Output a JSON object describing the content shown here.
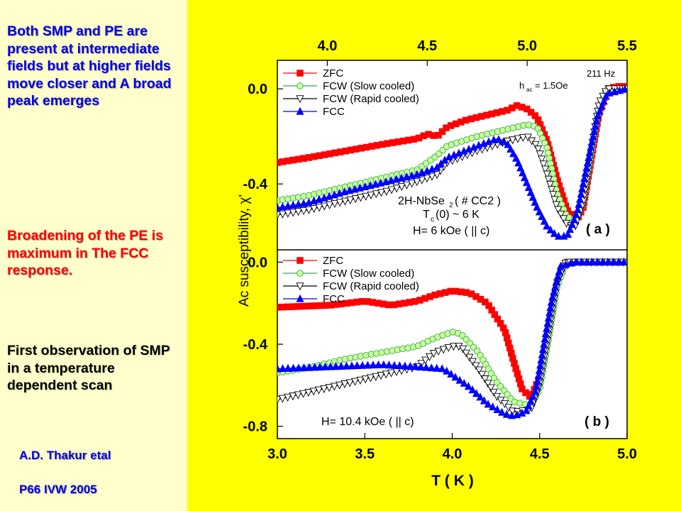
{
  "left_text": {
    "paragraph1": "Both SMP and PE are present at intermediate fields but at higher fields move closer and A broad peak emerges",
    "paragraph2": "Broadening of the PE is maximum in The FCC response.",
    "paragraph3": "First observation of SMP in a temperature dependent scan",
    "author": "A.D. Thakur etal",
    "reference": "P66 IVW 2005"
  },
  "colors": {
    "left_background": "#ffffcc",
    "right_background": "#ffff00",
    "zfc": "#ff0000",
    "fcw_slow": "#ccff99",
    "fcw_rapid": "#ffffff",
    "fcc": "#0000ff",
    "accent_blue": "#0000ee",
    "accent_red": "#ff0000"
  },
  "chart_data": {
    "type": "scatter",
    "ylabel": "Ac susceptibility, χ'",
    "xlabel": "T ( K )",
    "panels": [
      {
        "label": "( a )",
        "xlim": [
          3.75,
          5.5
        ],
        "ylim": [
          -0.68,
          0.12
        ],
        "x_ticks": [
          "4.0",
          "4.5",
          "5.0",
          "5.5"
        ],
        "y_ticks": [
          "0.0",
          "-0.4"
        ],
        "legend": [
          "ZFC",
          "FCW (Slow cooled)",
          "FCW (Rapid cooled)",
          "FCC"
        ],
        "annotations": [
          "211 Hz",
          "h",
          "ac",
          "= 1.5Oe",
          "2H-NbSe",
          "2",
          " ( # CC2 )",
          "T",
          "c",
          "(0) ~ 6 K",
          "H= 6 kOe ( || c)"
        ],
        "series": [
          {
            "name": "ZFC",
            "marker": "square",
            "points": [
              [
                3.75,
                -0.31
              ],
              [
                3.9,
                -0.29
              ],
              [
                4.1,
                -0.26
              ],
              [
                4.3,
                -0.23
              ],
              [
                4.45,
                -0.21
              ],
              [
                4.5,
                -0.19
              ],
              [
                4.55,
                -0.2
              ],
              [
                4.6,
                -0.16
              ],
              [
                4.7,
                -0.13
              ],
              [
                4.8,
                -0.11
              ],
              [
                4.9,
                -0.09
              ],
              [
                4.95,
                -0.07
              ],
              [
                5.0,
                -0.085
              ],
              [
                5.05,
                -0.12
              ],
              [
                5.1,
                -0.22
              ],
              [
                5.15,
                -0.38
              ],
              [
                5.2,
                -0.51
              ],
              [
                5.25,
                -0.55
              ],
              [
                5.28,
                -0.5
              ],
              [
                5.32,
                -0.3
              ],
              [
                5.36,
                -0.1
              ],
              [
                5.4,
                0.0
              ],
              [
                5.45,
                0.01
              ],
              [
                5.5,
                0.01
              ]
            ]
          },
          {
            "name": "FCW (Slow cooled)",
            "marker": "circle",
            "points": [
              [
                3.75,
                -0.47
              ],
              [
                3.9,
                -0.45
              ],
              [
                4.1,
                -0.41
              ],
              [
                4.3,
                -0.37
              ],
              [
                4.45,
                -0.34
              ],
              [
                4.5,
                -0.31
              ],
              [
                4.55,
                -0.28
              ],
              [
                4.6,
                -0.24
              ],
              [
                4.75,
                -0.2
              ],
              [
                4.9,
                -0.17
              ],
              [
                5.0,
                -0.15
              ],
              [
                5.05,
                -0.16
              ],
              [
                5.1,
                -0.25
              ],
              [
                5.15,
                -0.44
              ],
              [
                5.2,
                -0.54
              ],
              [
                5.25,
                -0.55
              ],
              [
                5.28,
                -0.48
              ],
              [
                5.32,
                -0.28
              ],
              [
                5.36,
                -0.08
              ],
              [
                5.4,
                0.0
              ],
              [
                5.5,
                0.0
              ]
            ]
          },
          {
            "name": "FCW (Rapid cooled)",
            "marker": "triangle-down",
            "points": [
              [
                3.75,
                -0.53
              ],
              [
                3.9,
                -0.51
              ],
              [
                4.1,
                -0.47
              ],
              [
                4.3,
                -0.43
              ],
              [
                4.45,
                -0.39
              ],
              [
                4.55,
                -0.36
              ],
              [
                4.6,
                -0.31
              ],
              [
                4.75,
                -0.26
              ],
              [
                4.9,
                -0.22
              ],
              [
                5.0,
                -0.2
              ],
              [
                5.05,
                -0.24
              ],
              [
                5.1,
                -0.36
              ],
              [
                5.15,
                -0.5
              ],
              [
                5.2,
                -0.57
              ],
              [
                5.24,
                -0.58
              ],
              [
                5.28,
                -0.48
              ],
              [
                5.32,
                -0.26
              ],
              [
                5.36,
                -0.06
              ],
              [
                5.4,
                0.0
              ],
              [
                5.5,
                0.0
              ]
            ]
          },
          {
            "name": "FCC",
            "marker": "triangle-up",
            "points": [
              [
                3.75,
                -0.5
              ],
              [
                3.9,
                -0.48
              ],
              [
                4.1,
                -0.43
              ],
              [
                4.3,
                -0.39
              ],
              [
                4.45,
                -0.36
              ],
              [
                4.55,
                -0.33
              ],
              [
                4.6,
                -0.29
              ],
              [
                4.75,
                -0.24
              ],
              [
                4.85,
                -0.21
              ],
              [
                4.9,
                -0.23
              ],
              [
                4.95,
                -0.3
              ],
              [
                5.0,
                -0.4
              ],
              [
                5.05,
                -0.5
              ],
              [
                5.1,
                -0.58
              ],
              [
                5.15,
                -0.62
              ],
              [
                5.2,
                -0.62
              ],
              [
                5.25,
                -0.52
              ],
              [
                5.3,
                -0.32
              ],
              [
                5.35,
                -0.12
              ],
              [
                5.4,
                -0.02
              ],
              [
                5.5,
                0.0
              ]
            ]
          }
        ]
      },
      {
        "label": "( b )",
        "xlim": [
          3.0,
          5.0
        ],
        "ylim": [
          -0.86,
          0.06
        ],
        "x_ticks": [
          "3.0",
          "3.5",
          "4.0",
          "4.5",
          "5.0"
        ],
        "y_ticks": [
          "0.0",
          "-0.4",
          "-0.8"
        ],
        "legend": [
          "ZFC",
          "FCW (Slow cooled)",
          "FCW (Rapid cooled)",
          "FCC"
        ],
        "annotations": [
          "H= 10.4 kOe ( || c)"
        ],
        "series": [
          {
            "name": "ZFC",
            "marker": "square",
            "points": [
              [
                3.0,
                -0.22
              ],
              [
                3.3,
                -0.21
              ],
              [
                3.5,
                -0.19
              ],
              [
                3.65,
                -0.21
              ],
              [
                3.8,
                -0.19
              ],
              [
                3.9,
                -0.16
              ],
              [
                4.0,
                -0.14
              ],
              [
                4.1,
                -0.15
              ],
              [
                4.2,
                -0.2
              ],
              [
                4.3,
                -0.33
              ],
              [
                4.35,
                -0.48
              ],
              [
                4.4,
                -0.62
              ],
              [
                4.45,
                -0.66
              ],
              [
                4.5,
                -0.56
              ],
              [
                4.55,
                -0.34
              ],
              [
                4.6,
                -0.1
              ],
              [
                4.65,
                0.0
              ],
              [
                5.0,
                0.0
              ]
            ]
          },
          {
            "name": "FCW (Slow cooled)",
            "marker": "circle",
            "points": [
              [
                3.0,
                -0.54
              ],
              [
                3.2,
                -0.51
              ],
              [
                3.4,
                -0.47
              ],
              [
                3.6,
                -0.44
              ],
              [
                3.8,
                -0.41
              ],
              [
                3.9,
                -0.37
              ],
              [
                4.0,
                -0.34
              ],
              [
                4.05,
                -0.35
              ],
              [
                4.15,
                -0.44
              ],
              [
                4.25,
                -0.58
              ],
              [
                4.35,
                -0.68
              ],
              [
                4.45,
                -0.7
              ],
              [
                4.5,
                -0.62
              ],
              [
                4.55,
                -0.38
              ],
              [
                4.6,
                -0.12
              ],
              [
                4.65,
                0.0
              ],
              [
                5.0,
                0.0
              ]
            ]
          },
          {
            "name": "FCW (Rapid cooled)",
            "marker": "triangle-down",
            "points": [
              [
                3.0,
                -0.67
              ],
              [
                3.2,
                -0.63
              ],
              [
                3.4,
                -0.59
              ],
              [
                3.6,
                -0.55
              ],
              [
                3.8,
                -0.51
              ],
              [
                3.9,
                -0.44
              ],
              [
                4.0,
                -0.41
              ],
              [
                4.05,
                -0.41
              ],
              [
                4.15,
                -0.52
              ],
              [
                4.25,
                -0.65
              ],
              [
                4.35,
                -0.73
              ],
              [
                4.45,
                -0.72
              ],
              [
                4.5,
                -0.6
              ],
              [
                4.55,
                -0.36
              ],
              [
                4.6,
                -0.1
              ],
              [
                4.65,
                0.0
              ],
              [
                5.0,
                0.0
              ]
            ]
          },
          {
            "name": "FCC",
            "marker": "triangle-up",
            "points": [
              [
                3.0,
                -0.52
              ],
              [
                3.3,
                -0.51
              ],
              [
                3.6,
                -0.5
              ],
              [
                3.8,
                -0.51
              ],
              [
                3.95,
                -0.52
              ],
              [
                4.1,
                -0.61
              ],
              [
                4.2,
                -0.69
              ],
              [
                4.3,
                -0.74
              ],
              [
                4.35,
                -0.75
              ],
              [
                4.42,
                -0.73
              ],
              [
                4.48,
                -0.62
              ],
              [
                4.52,
                -0.42
              ],
              [
                4.57,
                -0.18
              ],
              [
                4.62,
                -0.02
              ],
              [
                4.7,
                0.0
              ],
              [
                5.0,
                0.0
              ]
            ]
          }
        ]
      }
    ]
  }
}
